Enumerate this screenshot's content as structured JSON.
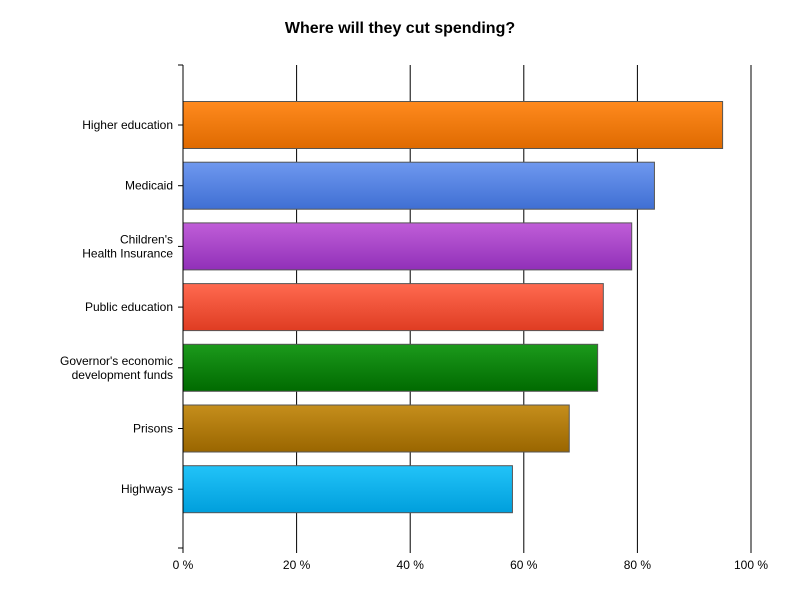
{
  "chart_data": {
    "type": "bar",
    "orientation": "horizontal",
    "title": "Where will they cut spending?",
    "xlabel": "",
    "ylabel": "",
    "xlim": [
      0,
      100
    ],
    "x_ticks": [
      "0 %",
      "20 %",
      "40 %",
      "60 %",
      "80 %",
      "100 %"
    ],
    "grid": "vertical",
    "legend": "none",
    "categories": [
      [
        "Higher education"
      ],
      [
        "Medicaid"
      ],
      [
        "Children's",
        "Health Insurance"
      ],
      [
        "Public education"
      ],
      [
        "Governor's economic",
        "development funds"
      ],
      [
        "Prisons"
      ],
      [
        "Highways"
      ]
    ],
    "values": [
      95,
      83,
      79,
      74,
      73,
      68,
      58
    ],
    "colors": [
      [
        "#ff8a1e",
        "#df6a00"
      ],
      [
        "#6f98ef",
        "#3f6fd3"
      ],
      [
        "#c05ed8",
        "#9130b8"
      ],
      [
        "#ff6a50",
        "#df3c22"
      ],
      [
        "#1c9a1c",
        "#006a00"
      ],
      [
        "#c58e1c",
        "#9a6600"
      ],
      [
        "#22c3f8",
        "#009fdc"
      ]
    ]
  }
}
